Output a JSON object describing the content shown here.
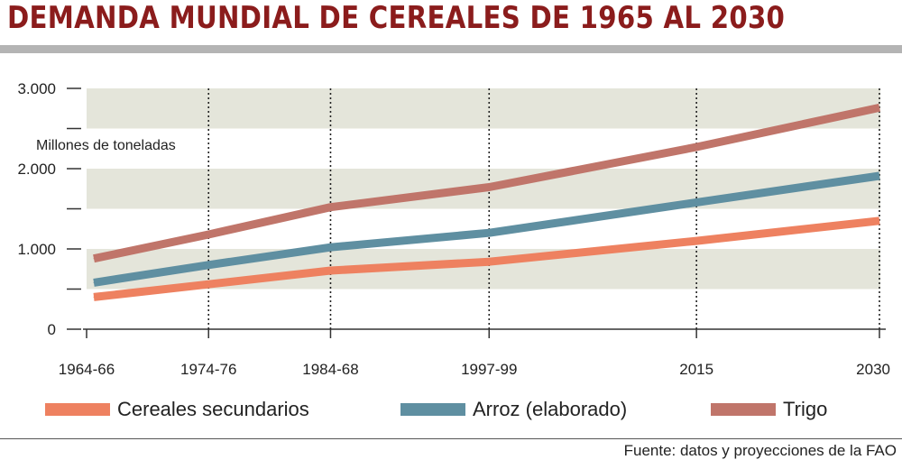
{
  "title": "DEMANDA MUNDIAL DE CEREALES DE 1965 AL 2030",
  "source": "Fuente: datos y proyecciones de la FAO",
  "colors": {
    "title": "#8b1c1c",
    "band": "#e4e5da",
    "cereales": "#ee8160",
    "arroz": "#5f8fa1",
    "trigo": "#c0756a"
  },
  "chart_data": {
    "type": "line",
    "title": "DEMANDA MUNDIAL DE CEREALES DE 1965 AL 2030",
    "ylabel": "Millones de toneladas",
    "xlabel": "",
    "categories": [
      "1964-66",
      "1974-76",
      "1984-68",
      "1997-99",
      "2015",
      "2030"
    ],
    "x_years": [
      1965,
      1975,
      1985,
      1998,
      2015,
      2030
    ],
    "y_tick_labels": [
      "3.000",
      "2.000",
      "1.000",
      "0"
    ],
    "y_tick_values": [
      3000,
      2000,
      1000,
      0
    ],
    "ylim": [
      0,
      3000
    ],
    "grid": true,
    "legend_position": "bottom",
    "series": [
      {
        "key": "cereales",
        "name": "Cereales secundarios",
        "values": [
          400,
          560,
          730,
          840,
          1100,
          1350
        ]
      },
      {
        "key": "arroz",
        "name": "Arroz (elaborado)",
        "values": [
          580,
          800,
          1020,
          1200,
          1580,
          1910
        ]
      },
      {
        "key": "trigo",
        "name": "Trigo",
        "values": [
          880,
          1180,
          1520,
          1770,
          2270,
          2760
        ]
      }
    ]
  }
}
